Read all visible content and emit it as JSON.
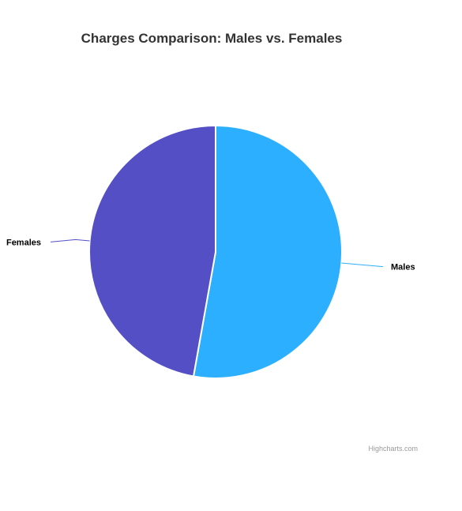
{
  "chart_data": {
    "type": "pie",
    "title": "Charges Comparison: Males vs. Females",
    "series": [
      {
        "name": "",
        "slices": [
          {
            "label": "Males",
            "value": 52.8,
            "color": "#2caffe"
          },
          {
            "label": "Females",
            "value": 47.2,
            "color": "#544fc5"
          }
        ]
      }
    ],
    "legend": "none",
    "data_labels": "outside with connector lines"
  },
  "credits": "Highcharts.com"
}
